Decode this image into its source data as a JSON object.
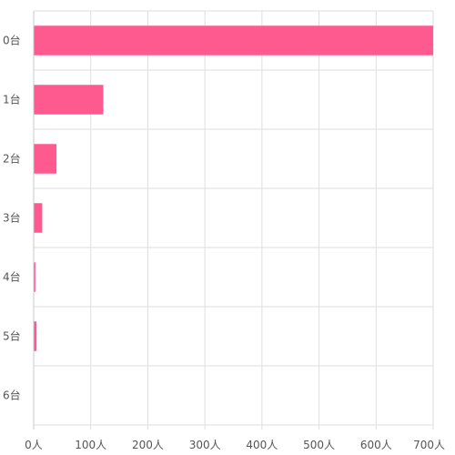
{
  "chart_data": {
    "type": "bar",
    "orientation": "horizontal",
    "categories": [
      "0台",
      "1台",
      "2台",
      "3台",
      "4台",
      "5台",
      "6台"
    ],
    "values": [
      700,
      122,
      40,
      15,
      3,
      5,
      0
    ],
    "x_ticks": [
      "0人",
      "100人",
      "200人",
      "300人",
      "400人",
      "500人",
      "600人",
      "700人"
    ],
    "xlim": [
      0,
      700
    ],
    "grid": true,
    "legend": "none",
    "bar_color": "#ff5a8f",
    "title": "",
    "xlabel": "",
    "ylabel": ""
  }
}
